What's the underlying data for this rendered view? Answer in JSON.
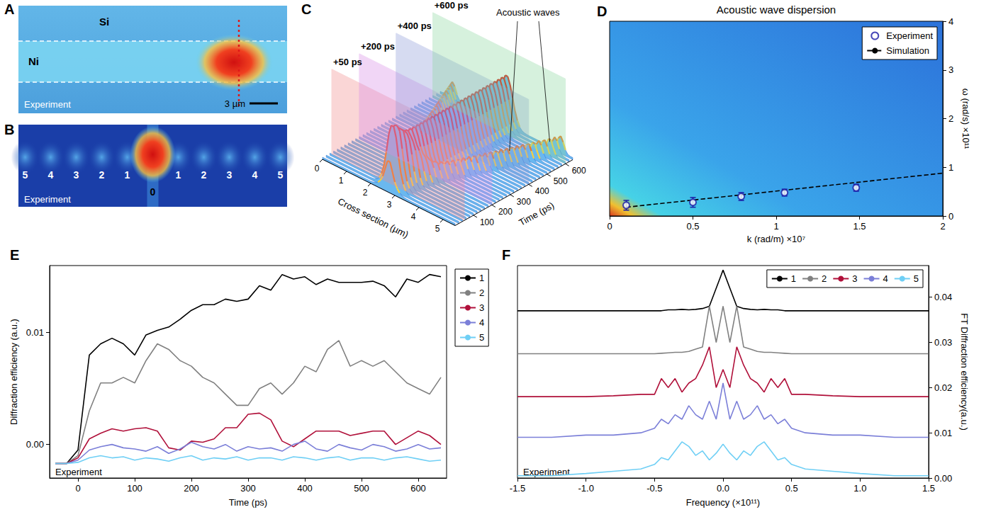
{
  "panels": {
    "A": {
      "letter": "A",
      "labels": [
        "Si",
        "Ni"
      ],
      "caption": "Experiment",
      "scale_bar": "3 µm"
    },
    "B": {
      "letter": "B",
      "orders": [
        "5",
        "4",
        "3",
        "2",
        "1",
        "0",
        "1",
        "2",
        "3",
        "4",
        "5"
      ],
      "caption": "Experiment"
    },
    "C": {
      "letter": "C",
      "annotation": "Acoustic waves",
      "planes": [
        {
          "time": 50,
          "label": "+50 ps"
        },
        {
          "time": 200,
          "label": "+200 ps"
        },
        {
          "time": 400,
          "label": "+400 ps"
        },
        {
          "time": 600,
          "label": "+600 ps"
        }
      ],
      "x_label": "Cross section (µm)",
      "xlim": [
        0,
        5.5
      ],
      "xticks": [
        0,
        1,
        2,
        3,
        4,
        5
      ],
      "y_label": "Time (ps)",
      "ylim": [
        0,
        640
      ],
      "yticks": [
        100,
        200,
        300,
        400,
        500,
        600
      ]
    }
  },
  "chart_data": [
    {
      "type": "scatter",
      "letter": "D",
      "title": "Acoustic wave dispersion",
      "x_label": "k (rad/m) ×10⁷",
      "y_label": "ω (rad/s) ×10¹¹",
      "xlim": [
        0,
        2
      ],
      "xticks": [
        0,
        0.5,
        1,
        1.5,
        2
      ],
      "ylim": [
        0,
        4
      ],
      "yticks": [
        0,
        1,
        2,
        3,
        4
      ],
      "grid": false,
      "legend": "upper right",
      "series": [
        {
          "name": "Experiment",
          "type": "scatter",
          "marker": "circle",
          "color": "#1a1aa6",
          "x": [
            0.1,
            0.5,
            0.79,
            1.05,
            1.48
          ],
          "values": [
            0.22,
            0.28,
            0.4,
            0.48,
            0.58
          ],
          "errors": [
            0.1,
            0.1,
            0.08,
            0.07,
            0.07
          ]
        },
        {
          "name": "Simulation",
          "type": "line",
          "line_style": "dashed",
          "color": "#000000",
          "x": [
            0.1,
            2
          ],
          "values": [
            0.18,
            0.88
          ]
        }
      ]
    },
    {
      "type": "line",
      "letter": "E",
      "x_label": "Time (ps)",
      "y_label": "Diffraction efficiency (a.u.)",
      "annotation": "Experiment",
      "x": [
        -40,
        -20,
        0,
        20,
        40,
        60,
        80,
        100,
        120,
        140,
        160,
        180,
        200,
        220,
        240,
        260,
        280,
        300,
        320,
        340,
        360,
        380,
        400,
        420,
        440,
        460,
        480,
        500,
        520,
        540,
        560,
        580,
        600,
        620,
        640
      ],
      "xlim": [
        -50,
        650
      ],
      "xticks": [
        0,
        100,
        200,
        300,
        400,
        500,
        600
      ],
      "ylim": [
        -0.003,
        0.016
      ],
      "yticks": [
        {
          "value": 0,
          "label": "0.00"
        },
        {
          "value": 0.01,
          "label": "0.01"
        }
      ],
      "grid": false,
      "legend": "right",
      "series": [
        {
          "name": "1",
          "color": "#000000",
          "values": [
            -0.0017,
            -0.0017,
            -0.0005,
            0.008,
            0.009,
            0.0095,
            0.009,
            0.008,
            0.0098,
            0.0102,
            0.0105,
            0.0112,
            0.012,
            0.0125,
            0.0125,
            0.013,
            0.0128,
            0.013,
            0.0142,
            0.0138,
            0.0152,
            0.0148,
            0.015,
            0.0143,
            0.0148,
            0.0145,
            0.0145,
            0.0145,
            0.0146,
            0.0142,
            0.0132,
            0.0148,
            0.0145,
            0.0152,
            0.015
          ]
        },
        {
          "name": "2",
          "color": "#808080",
          "values": [
            -0.0017,
            -0.0017,
            -0.001,
            0.003,
            0.0055,
            0.0055,
            0.006,
            0.0055,
            0.0075,
            0.009,
            0.0085,
            0.0075,
            0.007,
            0.006,
            0.0055,
            0.0045,
            0.0035,
            0.0035,
            0.005,
            0.0055,
            0.0045,
            0.0055,
            0.007,
            0.0065,
            0.0085,
            0.0093,
            0.007,
            0.0075,
            0.007,
            0.0075,
            0.0065,
            0.0055,
            0.005,
            0.0045,
            0.006
          ]
        },
        {
          "name": "3",
          "color": "#b0103a",
          "values": [
            -0.0017,
            -0.0017,
            -0.0012,
            0.0005,
            0.001,
            0.0014,
            0.0012,
            0.0014,
            0.0015,
            0.0012,
            -0.0003,
            -0.0005,
            0.0003,
            0.0002,
            0.0005,
            0.0015,
            0.0015,
            0.0027,
            0.0028,
            0.0022,
            0.0003,
            -0.0002,
            0.0005,
            0.0012,
            0.0012,
            0.0012,
            0.0008,
            0.001,
            0.0012,
            0.0012,
            0,
            0.0006,
            0.0012,
            0.0008,
            0
          ]
        },
        {
          "name": "4",
          "color": "#7b7fd8",
          "values": [
            -0.0017,
            -0.0017,
            -0.0014,
            -0.0005,
            -0.0002,
            0,
            -0.0003,
            -0.0004,
            -0.0006,
            -0.0002,
            -0.0008,
            -0.0004,
            0.0002,
            -0.0002,
            -0.0004,
            0,
            -0.0006,
            -0.0002,
            -0.0004,
            -0.0003,
            -0.0006,
            0,
            0.0003,
            -0.0004,
            -0.0006,
            0,
            -0.0003,
            -0.0005,
            0,
            -0.0002,
            -0.0006,
            -0.0004,
            0,
            -0.0004,
            -0.0003
          ]
        },
        {
          "name": "5",
          "color": "#6fcff5",
          "values": [
            -0.0017,
            -0.0017,
            -0.0016,
            -0.0012,
            -0.001,
            -0.0012,
            -0.0011,
            -0.0014,
            -0.0012,
            -0.0013,
            -0.0015,
            -0.0012,
            -0.001,
            -0.0014,
            -0.0012,
            -0.0013,
            -0.0011,
            -0.0014,
            -0.0012,
            -0.0012,
            -0.0014,
            -0.0011,
            -0.0012,
            -0.0014,
            -0.0012,
            -0.0011,
            -0.0014,
            -0.0012,
            -0.0012,
            -0.0014,
            -0.0012,
            -0.0011,
            -0.0013,
            -0.0015,
            -0.0014
          ]
        }
      ]
    },
    {
      "type": "line",
      "letter": "F",
      "x_label": "Frequency (×10¹¹)",
      "y_label": "FT Diffraction efficiency(a.u.)",
      "annotation": "Experiment",
      "x": [
        -1.5,
        -1.25,
        -1.0,
        -0.8,
        -0.6,
        -0.5,
        -0.45,
        -0.4,
        -0.35,
        -0.3,
        -0.25,
        -0.2,
        -0.15,
        -0.1,
        -0.05,
        0,
        0.05,
        0.1,
        0.15,
        0.2,
        0.25,
        0.3,
        0.35,
        0.4,
        0.45,
        0.5,
        0.6,
        0.8,
        1.0,
        1.25,
        1.5
      ],
      "xlim": [
        -1.5,
        1.5
      ],
      "xticks": [
        {
          "value": -1.5,
          "label": "-1.5"
        },
        {
          "value": -1,
          "label": "-1.0"
        },
        {
          "value": -0.5,
          "label": "-0.5"
        },
        {
          "value": 0,
          "label": "0.0"
        },
        {
          "value": 0.5,
          "label": "0.5"
        },
        {
          "value": 1,
          "label": "1.0"
        },
        {
          "value": 1.5,
          "label": "1.5"
        }
      ],
      "ylim": [
        0,
        0.047
      ],
      "yticks": [
        {
          "value": 0,
          "label": "0.00"
        },
        {
          "value": 0.01,
          "label": "0.01"
        },
        {
          "value": 0.02,
          "label": "0.02"
        },
        {
          "value": 0.03,
          "label": "0.03"
        },
        {
          "value": 0.04,
          "label": "0.04"
        }
      ],
      "grid": false,
      "legend": "upper right",
      "series": [
        {
          "name": "1",
          "color": "#000000",
          "values": [
            0.037,
            0.037,
            0.037,
            0.037,
            0.037,
            0.037,
            0.037,
            0.0372,
            0.0372,
            0.0373,
            0.0372,
            0.0373,
            0.0375,
            0.038,
            0.042,
            0.046,
            0.042,
            0.038,
            0.0375,
            0.0373,
            0.0372,
            0.0373,
            0.0372,
            0.0372,
            0.037,
            0.037,
            0.037,
            0.037,
            0.037,
            0.037,
            0.037
          ]
        },
        {
          "name": "2",
          "color": "#808080",
          "values": [
            0.0275,
            0.0275,
            0.0275,
            0.0275,
            0.0275,
            0.0275,
            0.0276,
            0.0277,
            0.0278,
            0.0278,
            0.028,
            0.0285,
            0.029,
            0.038,
            0.03,
            0.038,
            0.03,
            0.038,
            0.029,
            0.0285,
            0.028,
            0.0278,
            0.0278,
            0.0277,
            0.0276,
            0.0275,
            0.0275,
            0.0275,
            0.0275,
            0.0275,
            0.0275
          ]
        },
        {
          "name": "3",
          "color": "#b0103a",
          "values": [
            0.018,
            0.018,
            0.018,
            0.0182,
            0.0185,
            0.0185,
            0.022,
            0.02,
            0.022,
            0.019,
            0.021,
            0.022,
            0.025,
            0.029,
            0.02,
            0.024,
            0.02,
            0.029,
            0.025,
            0.022,
            0.021,
            0.019,
            0.022,
            0.02,
            0.022,
            0.0185,
            0.0185,
            0.0182,
            0.018,
            0.018,
            0.018
          ]
        },
        {
          "name": "4",
          "color": "#7b7fd8",
          "values": [
            0.009,
            0.009,
            0.0095,
            0.0095,
            0.01,
            0.011,
            0.013,
            0.012,
            0.014,
            0.013,
            0.016,
            0.014,
            0.013,
            0.017,
            0.013,
            0.021,
            0.013,
            0.017,
            0.013,
            0.014,
            0.016,
            0.013,
            0.014,
            0.012,
            0.013,
            0.011,
            0.01,
            0.0095,
            0.0095,
            0.009,
            0.009
          ]
        },
        {
          "name": "5",
          "color": "#6fcff5",
          "values": [
            0.0005,
            0.0005,
            0.001,
            0.0015,
            0.002,
            0.003,
            0.0045,
            0.004,
            0.006,
            0.008,
            0.007,
            0.005,
            0.006,
            0.004,
            0.0055,
            0.0075,
            0.0055,
            0.004,
            0.006,
            0.005,
            0.007,
            0.008,
            0.006,
            0.004,
            0.0045,
            0.003,
            0.002,
            0.0015,
            0.001,
            0.0005,
            0.0005
          ]
        }
      ]
    }
  ]
}
